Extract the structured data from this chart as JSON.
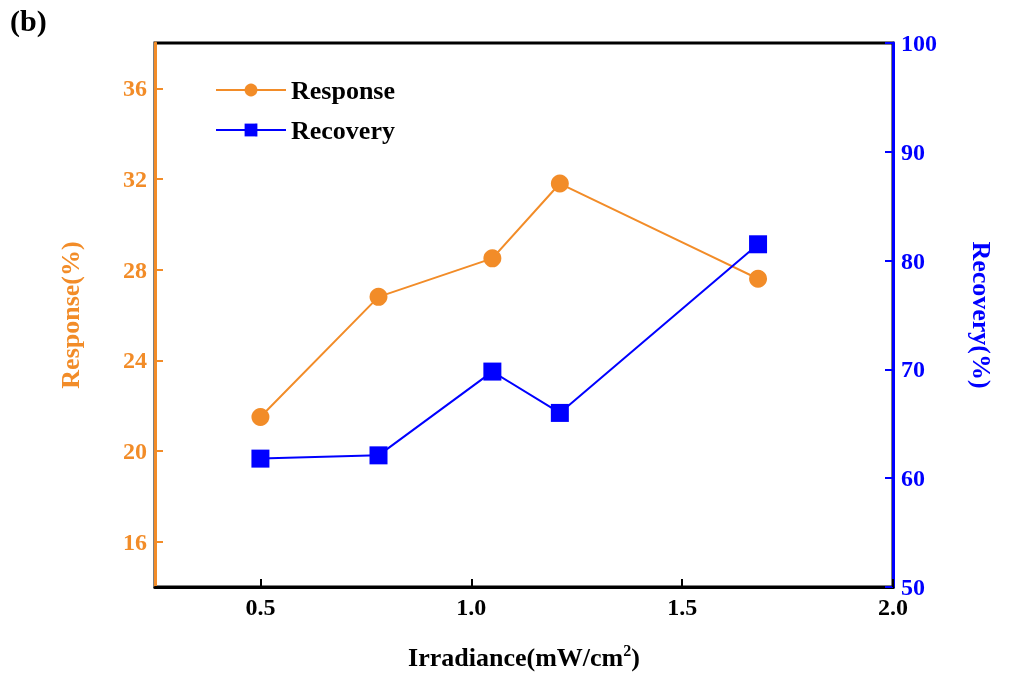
{
  "chart_data": {
    "type": "line",
    "title": "(b)",
    "xlabel": "Irradiance(mW/cm$^{2}$)",
    "ylabel": "Response(%)",
    "y2label": "Recovery(%)",
    "x": [
      0.5,
      0.78,
      1.05,
      1.21,
      1.68
    ],
    "series": [
      {
        "name": "Response",
        "color": "#f28c28",
        "marker": "circle",
        "values": [
          21.5,
          26.8,
          28.5,
          31.8,
          27.6
        ]
      },
      {
        "name": "Recovery",
        "color": "#0000ff",
        "marker": "square",
        "axis": "y2",
        "values": [
          61.8,
          62.1,
          69.8,
          66.0,
          81.5
        ]
      }
    ],
    "xlim": [
      0.25,
      2.0
    ],
    "xticks": [
      {
        "value": 0.5,
        "label": "0.5"
      },
      {
        "value": 1,
        "label": "1.0"
      },
      {
        "value": 1.5,
        "label": "1.5"
      },
      {
        "value": 2,
        "label": "2.0"
      }
    ],
    "ylim": [
      14,
      38
    ],
    "yticks": [
      16,
      20,
      24,
      28,
      32,
      36
    ],
    "y2lim": [
      50,
      100
    ],
    "y2ticks": [
      50,
      60,
      70,
      80,
      90,
      100
    ],
    "grid": false,
    "legend": "top left",
    "line_style": "solid"
  }
}
